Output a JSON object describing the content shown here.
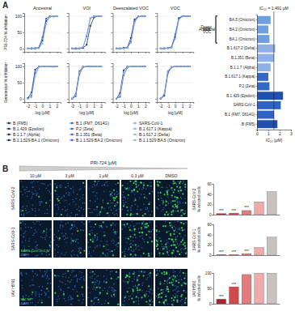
{
  "panel_labels": [
    "A",
    "B"
  ],
  "chart_data": [
    {
      "type": "line",
      "title": "Ancestral",
      "ylabel": "PRI-724 % inhibition",
      "x": [
        -2,
        -1.5,
        -1,
        -0.5,
        0,
        0.5,
        1,
        1.5,
        2
      ],
      "xlim": [
        -2.5,
        2.5
      ],
      "xticks": [
        -2,
        -1,
        0,
        1,
        2
      ],
      "ylim": [
        -10,
        110
      ],
      "yticks": [
        0,
        50,
        100
      ],
      "grid": true,
      "tick_labels": "y",
      "series": [
        {
          "name": "B (FM5)",
          "color": "#0b2f7a",
          "marker": "circle",
          "values": [
            0,
            1,
            0,
            2,
            25,
            85,
            98,
            100,
            100
          ]
        },
        {
          "name": "B.1 (FM7, D614G)",
          "color": "#3568c4",
          "marker": "circle",
          "values": [
            1,
            0,
            2,
            3,
            35,
            92,
            100,
            99,
            100
          ]
        },
        {
          "name": "SARS-CoV-1",
          "color": "#8fb0e6",
          "marker": "circle",
          "values": [
            0,
            2,
            1,
            1,
            15,
            75,
            97,
            100,
            100
          ]
        }
      ]
    },
    {
      "type": "line",
      "title": "VOI",
      "x": [
        -2,
        -1.5,
        -1,
        -0.5,
        0,
        0.5,
        1,
        1.5,
        2
      ],
      "xlim": [
        -2.5,
        2.5
      ],
      "xticks": [
        -2,
        -1,
        0,
        1,
        2
      ],
      "ylim": [
        -10,
        110
      ],
      "yticks": [
        0,
        50,
        100
      ],
      "grid": true,
      "tick_labels": false,
      "series": [
        {
          "name": "B.1.429 (Epsilon)",
          "color": "#0b2f7a",
          "marker": "circle",
          "values": [
            0,
            0,
            1,
            2,
            12,
            70,
            96,
            100,
            100
          ]
        },
        {
          "name": "P.2 (Zeta)",
          "color": "#3568c4",
          "marker": "circle",
          "values": [
            1,
            1,
            0,
            4,
            38,
            93,
            100,
            100,
            100
          ]
        },
        {
          "name": "B.1.617.1 (Kappa)",
          "color": "#8fb0e6",
          "marker": "circle",
          "values": [
            0,
            2,
            1,
            5,
            42,
            95,
            99,
            100,
            100
          ]
        }
      ]
    },
    {
      "type": "line",
      "title": "Deescalated VOC",
      "x": [
        -2,
        -1.5,
        -1,
        -0.5,
        0,
        0.5,
        1,
        1.5,
        2
      ],
      "xlim": [
        -2.5,
        2.5
      ],
      "xticks": [
        -2,
        -1,
        0,
        1,
        2
      ],
      "ylim": [
        -10,
        110
      ],
      "yticks": [
        0,
        50,
        100
      ],
      "grid": true,
      "tick_labels": false,
      "series": [
        {
          "name": "B.1.1.7 (Alpha)",
          "color": "#0b2f7a",
          "marker": "circle",
          "values": [
            0,
            1,
            2,
            3,
            33,
            90,
            99,
            100,
            100
          ]
        },
        {
          "name": "B.1.351 (Beta)",
          "color": "#3568c4",
          "marker": "circle",
          "values": [
            1,
            0,
            1,
            2,
            22,
            84,
            98,
            100,
            100
          ]
        },
        {
          "name": "B.1.617.2 (Delta)",
          "color": "#8fb0e6",
          "marker": "circle",
          "values": [
            0,
            1,
            0,
            2,
            18,
            80,
            97,
            100,
            100
          ]
        }
      ]
    },
    {
      "type": "line",
      "title": "VOC",
      "x": [
        -2,
        -1.5,
        -1,
        -0.5,
        0,
        0.5,
        1,
        1.5,
        2
      ],
      "xlim": [
        -2.5,
        2.5
      ],
      "xticks": [
        -2,
        -1,
        0,
        1,
        2
      ],
      "ylim": [
        -10,
        110
      ],
      "yticks": [
        0,
        50,
        100
      ],
      "grid": true,
      "tick_labels": false,
      "series": [
        {
          "name": "B.1.1.529 BA.1 (Omicron)",
          "color": "#0b2f7a",
          "marker": "circle",
          "values": [
            0,
            1,
            1,
            3,
            36,
            92,
            100,
            100,
            100
          ]
        },
        {
          "name": "B.1.1.529 BA.2 (Omicron)",
          "color": "#3568c4",
          "marker": "circle",
          "values": [
            1,
            0,
            2,
            5,
            44,
            95,
            100,
            100,
            100
          ]
        },
        {
          "name": "B.1.1.529 BA.5 (Omicron)",
          "color": "#8fb0e6",
          "marker": "circle",
          "values": [
            0,
            2,
            1,
            3,
            30,
            89,
            99,
            100,
            100
          ]
        }
      ]
    },
    {
      "type": "line",
      "ylabel": "Remdesivir % inhibition",
      "xlabel": "log [μM]",
      "x": [
        -2,
        -1.5,
        -1,
        -0.5,
        0,
        0.5,
        1,
        1.5,
        2
      ],
      "xlim": [
        -2.5,
        2.5
      ],
      "xticks": [
        -2,
        -1,
        0,
        1,
        2
      ],
      "ylim": [
        -10,
        110
      ],
      "yticks": [
        0,
        50,
        100
      ],
      "grid": true,
      "tick_labels": true,
      "series": [
        {
          "color": "#0b2f7a",
          "marker": "circle",
          "values": [
            2,
            20,
            90,
            99,
            100,
            100,
            100,
            100,
            100
          ]
        },
        {
          "color": "#3568c4",
          "marker": "circle",
          "values": [
            1,
            10,
            80,
            98,
            100,
            100,
            100,
            99,
            100
          ]
        },
        {
          "color": "#8fb0e6",
          "marker": "circle",
          "values": [
            0,
            5,
            70,
            97,
            100,
            100,
            100,
            100,
            100
          ]
        }
      ]
    },
    {
      "type": "line",
      "xlabel": "log [μM]",
      "x": [
        -2,
        -1.5,
        -1,
        -0.5,
        0,
        0.5,
        1,
        1.5,
        2
      ],
      "xlim": [
        -2.5,
        2.5
      ],
      "xticks": [
        -2,
        -1,
        0,
        1,
        2
      ],
      "ylim": [
        -10,
        110
      ],
      "yticks": [
        0,
        50,
        100
      ],
      "grid": true,
      "tick_labels": "x",
      "series": [
        {
          "color": "#0b2f7a",
          "marker": "circle",
          "values": [
            1,
            15,
            85,
            99,
            100,
            100,
            100,
            100,
            100
          ]
        },
        {
          "color": "#3568c4",
          "marker": "circle",
          "values": [
            0,
            8,
            75,
            97,
            100,
            100,
            100,
            100,
            100
          ]
        },
        {
          "color": "#8fb0e6",
          "marker": "circle",
          "values": [
            2,
            12,
            82,
            98,
            100,
            99,
            100,
            100,
            100
          ]
        }
      ]
    },
    {
      "type": "line",
      "xlabel": "log [μM]",
      "x": [
        -2,
        -1.5,
        -1,
        -0.5,
        0,
        0.5,
        1,
        1.5,
        2
      ],
      "xlim": [
        -2.5,
        2.5
      ],
      "xticks": [
        -2,
        -1,
        0,
        1,
        2
      ],
      "ylim": [
        -10,
        110
      ],
      "yticks": [
        0,
        50,
        100
      ],
      "grid": true,
      "tick_labels": "x",
      "series": [
        {
          "color": "#0b2f7a",
          "marker": "circle",
          "values": [
            0,
            18,
            88,
            99,
            100,
            100,
            100,
            100,
            100
          ]
        },
        {
          "color": "#3568c4",
          "marker": "circle",
          "values": [
            1,
            6,
            72,
            96,
            100,
            100,
            100,
            100,
            100
          ]
        },
        {
          "color": "#8fb0e6",
          "marker": "circle",
          "values": [
            0,
            10,
            78,
            98,
            100,
            100,
            100,
            100,
            100
          ]
        }
      ]
    },
    {
      "type": "line",
      "xlabel": "log [μM]",
      "x": [
        -2,
        -1.5,
        -1,
        -0.5,
        0,
        0.5,
        1,
        1.5,
        2
      ],
      "xlim": [
        -2.5,
        2.5
      ],
      "xticks": [
        -2,
        -1,
        0,
        1,
        2
      ],
      "ylim": [
        -10,
        110
      ],
      "yticks": [
        0,
        50,
        100
      ],
      "grid": true,
      "tick_labels": "x",
      "series": [
        {
          "color": "#0b2f7a",
          "marker": "circle",
          "values": [
            1,
            12,
            84,
            98,
            100,
            100,
            100,
            100,
            100
          ]
        },
        {
          "color": "#3568c4",
          "marker": "circle",
          "values": [
            0,
            9,
            79,
            97,
            100,
            100,
            100,
            100,
            100
          ]
        },
        {
          "color": "#8fb0e6",
          "marker": "circle",
          "values": [
            2,
            16,
            86,
            99,
            100,
            100,
            100,
            100,
            100
          ]
        }
      ]
    },
    {
      "type": "bar",
      "orientation": "horizontal",
      "xlabel": "IC₅₀ [μM]",
      "categories": [
        "BA.5 (Omicron)",
        "BA.2 (Omicron)",
        "BA.1 (Omicron)",
        "B.1.617.2 (Delta)",
        "B.1.351 (Beta)",
        "B.1.1.7 (Alpha)",
        "B.1.617.1 (Kappa)",
        "P.2 (Zeta)",
        "B.1.429 (Epsilon)",
        "SARS-CoV-1",
        "B.1 (FM7, D614G)",
        "B (FM5)"
      ],
      "values": [
        1.2,
        1.0,
        1.1,
        1.6,
        1.5,
        1.2,
        1.0,
        1.1,
        2.3,
        2.1,
        1.5,
        1.8
      ],
      "colors": [
        "#6f9fe0",
        "#6f9fe0",
        "#6f9fe0",
        "#8fb0e6",
        "#8fb0e6",
        "#8fb0e6",
        "#3568c4",
        "#3568c4",
        "#1f4fb0",
        "#2f62c8",
        "#2f62c8",
        "#1f4fb0"
      ],
      "xlim": [
        0,
        3
      ],
      "xticks": [
        0,
        1,
        2,
        3
      ],
      "annotation": {
        "text": "IC₅₀ = 1.491 μM",
        "value": 1.491
      },
      "groups": [
        {
          "label": "VOC",
          "size": 3
        },
        {
          "label": "Deesc. VOC",
          "size": 3
        },
        {
          "label": "VOI",
          "size": 3
        },
        {
          "label": "Ancestral",
          "size": 3
        }
      ]
    },
    {
      "type": "bar",
      "title": "SARS-CoV-2",
      "ylabel": "% infected cells",
      "categories": [
        null,
        null,
        null,
        null,
        null
      ],
      "values": [
        2,
        3,
        8,
        25,
        45
      ],
      "colors": [
        "#a8262a",
        "#cf4a4a",
        "#e27b7b",
        "#f1aaaa",
        "#c9c0c0"
      ],
      "ylim": [
        0,
        60
      ],
      "yticks": [
        0,
        20,
        40,
        60
      ],
      "tick_labels": "y",
      "annotations": [
        {
          "index": 0,
          "text": "***"
        },
        {
          "index": 1,
          "text": "***"
        },
        {
          "index": 2,
          "text": "***"
        }
      ]
    },
    {
      "type": "bar",
      "title": "SARS-CoV-1",
      "ylabel": "% infected cells",
      "categories": [
        null,
        null,
        null,
        null,
        null
      ],
      "values": [
        1,
        1,
        3,
        15,
        35
      ],
      "colors": [
        "#a8262a",
        "#cf4a4a",
        "#e27b7b",
        "#f1aaaa",
        "#c9c0c0"
      ],
      "ylim": [
        0,
        60
      ],
      "yticks": [
        0,
        20,
        40,
        60
      ],
      "tick_labels": "y",
      "annotations": [
        {
          "index": 0,
          "text": "***"
        },
        {
          "index": 1,
          "text": "***"
        },
        {
          "index": 2,
          "text": "***"
        }
      ]
    },
    {
      "type": "bar",
      "title": "IAV H5N1",
      "ylabel": "% infected cells",
      "categories": [
        null,
        null,
        null,
        null,
        null
      ],
      "values": [
        15,
        55,
        95,
        100,
        100
      ],
      "colors": [
        "#a8262a",
        "#cf4a4a",
        "#e27b7b",
        "#f1aaaa",
        "#c9c0c0"
      ],
      "ylim": [
        0,
        100
      ],
      "yticks": [
        0,
        50,
        100
      ],
      "tick_labels": "y",
      "annotations": [
        {
          "index": 0,
          "text": "***"
        },
        {
          "index": 1,
          "text": "***"
        }
      ]
    }
  ],
  "images": {
    "header": "PRI-724 [μM]",
    "columns": [
      "10 μM",
      "3 μM",
      "1 μM",
      "0.3 μM",
      "DMSO"
    ],
    "rows": [
      "SARS-CoV-2",
      "SARS-CoV-1",
      "IAV H5N1"
    ],
    "stain_labels": [
      null,
      [
        "SARS-CoV-2/-1 N",
        "DAPI"
      ],
      [
        "IAV NP",
        "DAPI"
      ]
    ]
  }
}
